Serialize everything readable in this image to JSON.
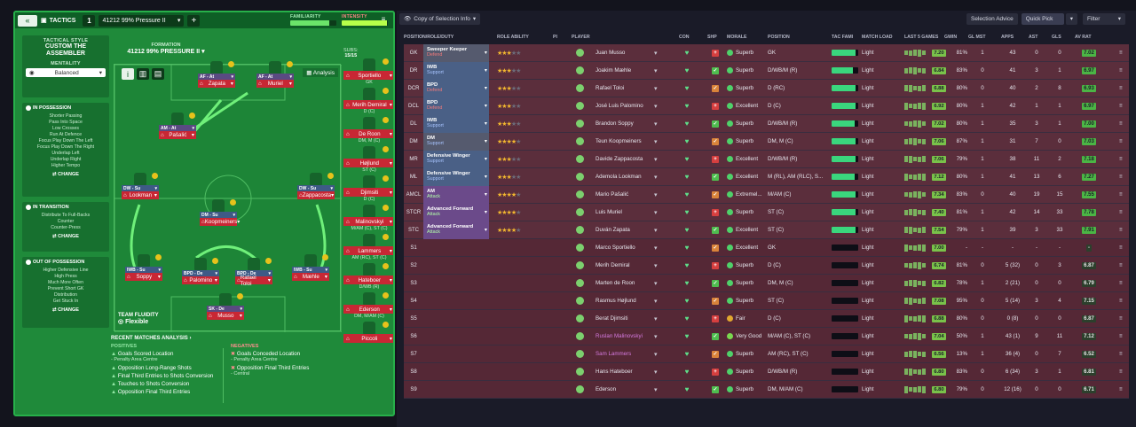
{
  "header": {
    "tactics_label": "TACTICS",
    "tactic_number": "1",
    "tactic_name": "41212 99% Pressure II",
    "familiarity_label": "FAMILIARITY",
    "familiarity": 0.85,
    "intensity_label": "INTENSITY",
    "intensity": 0.98
  },
  "style": {
    "label": "TACTICAL STYLE",
    "name": "CUSTOM THE ASSEMBLER",
    "mentality_label": "MENTALITY",
    "mentality_value": "Balanced"
  },
  "in_possession": {
    "title": "IN POSSESSION",
    "items": [
      "Shorter Passing",
      "Pass Into Space",
      "Low Crosses",
      "Run At Defence",
      "Focus Play Down The Left",
      "Focus Play Down The Right",
      "Underlap Left",
      "Underlap Right",
      "Higher Tempo"
    ],
    "change": "CHANGE"
  },
  "in_transition": {
    "title": "IN TRANSITION",
    "items": [
      "Distribute To Full-Backs",
      "Counter",
      "Counter-Press"
    ],
    "change": "CHANGE"
  },
  "out_possession": {
    "title": "OUT OF POSSESSION",
    "items": [
      "Higher Defensive Line",
      "High Press",
      "Much More Often",
      "Prevent Short GK",
      "Distribution",
      "Get Stuck In"
    ],
    "change": "CHANGE"
  },
  "formation": {
    "label": "FORMATION",
    "name": "41212 99% PRESSURE II",
    "subs_label": "SUBS:",
    "subs": "15/15",
    "analysis": "Analysis",
    "fluidity_label": "TEAM FLUIDITY",
    "fluidity": "Flexible"
  },
  "pitch_players": [
    {
      "role": "AF - At",
      "name": "Zapata"
    },
    {
      "role": "AF - At",
      "name": "Muriel"
    },
    {
      "role": "AM - At",
      "name": "Pašalić"
    },
    {
      "role": "DW - Su",
      "name": "Lookman"
    },
    {
      "role": "DW - Su",
      "name": "Zappacosta"
    },
    {
      "role": "DM - Su",
      "name": "Koopmeiners"
    },
    {
      "role": "IWB - Su",
      "name": "Soppy"
    },
    {
      "role": "BPD - De",
      "name": "Palomino"
    },
    {
      "role": "BPD - De",
      "name": "Rafael Toloi"
    },
    {
      "role": "IWB - Su",
      "name": "Mæhle"
    },
    {
      "role": "SK - De",
      "name": "Musso"
    }
  ],
  "bench": [
    {
      "name": "Sportiello",
      "pos": "GK"
    },
    {
      "name": "Merih Demiral",
      "pos": "D (C)"
    },
    {
      "name": "De Roon",
      "pos": "DM, M (C)"
    },
    {
      "name": "Højlund",
      "pos": "ST (C)"
    },
    {
      "name": "Djimsiti",
      "pos": "D (C)"
    },
    {
      "name": "Malinovskyi",
      "pos": "M/AM (C), ST (C)"
    },
    {
      "name": "Lammers",
      "pos": "AM (RC), ST (C)"
    },
    {
      "name": "Hateboer",
      "pos": "D/WB (R)"
    },
    {
      "name": "Ederson",
      "pos": "DM, M/AM (C)"
    },
    {
      "name": "Piccoli",
      "pos": ""
    }
  ],
  "recent": {
    "title": "RECENT MATCHES ANALYSIS ›",
    "positives_label": "POSITIVES",
    "negatives_label": "NEGATIVES",
    "positives": [
      [
        "Goals Scored Location",
        "- Penalty Area Centre"
      ],
      [
        "Opposition Long-Range Shots",
        ""
      ],
      [
        "Final Third Entries to Shots Conversion",
        ""
      ],
      [
        "Touches to Shots Conversion",
        ""
      ],
      [
        "Opposition Final Third Entries",
        ""
      ]
    ],
    "negatives": [
      [
        "Goals Conceded Location",
        "- Penalty Area Centre"
      ],
      [
        "Opposition Final Third Entries",
        "- Central"
      ]
    ]
  },
  "toolbar": {
    "view": "Copy of Selection Info",
    "selection_advice": "Selection Advice",
    "quick_pick": "Quick Pick",
    "filter": "Filter"
  },
  "columns": [
    "POSITION/ROLE/DUTY",
    "ROLE ABILITY",
    "PI",
    "PLAYER",
    "CON",
    "SHP",
    "MORALE",
    "POSITION",
    "TAC FAMI",
    "MATCH LOAD",
    "LAST 5 GAMES",
    "GWIN",
    "GL MST",
    "APPS",
    "AST",
    "GLS",
    "AV RAT"
  ],
  "rows": [
    {
      "pos": "GK",
      "role": "Sweeper Keeper",
      "duty": "Defend",
      "stars": 3,
      "player": "Juan Musso",
      "morale": "Superb",
      "position": "GK",
      "fam": 0.9,
      "load": "Light",
      "avr5": "7.20",
      "gwin": "81%",
      "glm": "1",
      "apps": "43",
      "ast": "0",
      "gls": "0",
      "avr": "7.02"
    },
    {
      "pos": "DR",
      "role": "IWB",
      "duty": "Support",
      "stars": 2.5,
      "player": "Joakim Mæhle",
      "morale": "Superb",
      "position": "D/WB/M (R)",
      "fam": 0.8,
      "load": "Light",
      "avr5": "6.84",
      "gwin": "83%",
      "glm": "0",
      "apps": "41",
      "ast": "3",
      "gls": "1",
      "avr": "6.97"
    },
    {
      "pos": "DCR",
      "role": "BPD",
      "duty": "Defend",
      "stars": 2.5,
      "player": "Rafael Toloi",
      "morale": "Superb",
      "position": "D (RC)",
      "fam": 0.9,
      "load": "Light",
      "avr5": "6.88",
      "gwin": "80%",
      "glm": "0",
      "apps": "40",
      "ast": "2",
      "gls": "8",
      "avr": "6.93"
    },
    {
      "pos": "DCL",
      "role": "BPD",
      "duty": "Defend",
      "stars": 2.5,
      "player": "José Luis Palomino",
      "morale": "Excellent",
      "position": "D (C)",
      "fam": 0.9,
      "load": "Light",
      "avr5": "6.92",
      "gwin": "80%",
      "glm": "1",
      "apps": "42",
      "ast": "1",
      "gls": "1",
      "avr": "6.97"
    },
    {
      "pos": "DL",
      "role": "IWB",
      "duty": "Support",
      "stars": 2.5,
      "player": "Brandon Soppy",
      "morale": "Superb",
      "position": "D/WB/M (R)",
      "fam": 0.85,
      "load": "Light",
      "avr5": "7.02",
      "gwin": "80%",
      "glm": "1",
      "apps": "35",
      "ast": "3",
      "gls": "1",
      "avr": "7.00"
    },
    {
      "pos": "DM",
      "role": "DM",
      "duty": "Support",
      "stars": 4,
      "player": "Teun Koopmeiners",
      "morale": "Superb",
      "position": "DM, M (C)",
      "fam": 0.9,
      "load": "Light",
      "avr5": "7.06",
      "gwin": "87%",
      "glm": "1",
      "apps": "31",
      "ast": "7",
      "gls": "0",
      "avr": "7.03"
    },
    {
      "pos": "MR",
      "role": "Defensive Winger",
      "duty": "Support",
      "stars": 3,
      "player": "Davide Zappacosta",
      "morale": "Excellent",
      "position": "D/WB/M (R)",
      "fam": 0.9,
      "load": "Light",
      "avr5": "7.06",
      "gwin": "79%",
      "glm": "1",
      "apps": "38",
      "ast": "11",
      "gls": "2",
      "avr": "7.18"
    },
    {
      "pos": "ML",
      "role": "Defensive Winger",
      "duty": "Support",
      "stars": 2.5,
      "player": "Ademola Lookman",
      "morale": "Excellent",
      "position": "M (RL), AM (RLC), S...",
      "fam": 0.85,
      "load": "Light",
      "avr5": "7.12",
      "gwin": "80%",
      "glm": "1",
      "apps": "41",
      "ast": "13",
      "gls": "6",
      "avr": "7.27"
    },
    {
      "pos": "AMCL",
      "role": "AM",
      "duty": "Attack",
      "stars": 4,
      "player": "Mario Pašalić",
      "morale": "Extremel...",
      "position": "M/AM (C)",
      "fam": 0.9,
      "load": "Light",
      "avr5": "7.34",
      "gwin": "83%",
      "glm": "0",
      "apps": "40",
      "ast": "19",
      "gls": "15",
      "avr": "7.55"
    },
    {
      "pos": "STCR",
      "role": "Advanced Forward",
      "duty": "Attack",
      "stars": 3.5,
      "player": "Luis Muriel",
      "morale": "Superb",
      "position": "ST (C)",
      "fam": 0.9,
      "load": "Light",
      "avr5": "7.40",
      "gwin": "81%",
      "glm": "1",
      "apps": "42",
      "ast": "14",
      "gls": "33",
      "avr": "7.78"
    },
    {
      "pos": "STC",
      "role": "Advanced Forward",
      "duty": "Attack",
      "stars": 3.5,
      "player": "Duván Zapata",
      "morale": "Excellent",
      "position": "ST (C)",
      "fam": 0.9,
      "load": "Light",
      "avr5": "7.54",
      "gwin": "79%",
      "glm": "1",
      "apps": "39",
      "ast": "3",
      "gls": "33",
      "avr": "7.91"
    },
    {
      "pos": "S1",
      "player": "Marco Sportiello",
      "morale": "Excellent",
      "position": "GK",
      "fam": 0,
      "load": "Light",
      "avr5": "7.00",
      "gwin": "-",
      "glm": "-",
      "apps": "-",
      "ast": "-",
      "gls": "-",
      "avr": "-"
    },
    {
      "pos": "S2",
      "player": "Merih Demiral",
      "morale": "Superb",
      "position": "D (C)",
      "fam": 0,
      "load": "Light",
      "avr5": "6.74",
      "gwin": "81%",
      "glm": "0",
      "apps": "5 (32)",
      "ast": "0",
      "gls": "3",
      "avr": "6.87"
    },
    {
      "pos": "S3",
      "player": "Marten de Roon",
      "morale": "Superb",
      "position": "DM, M (C)",
      "fam": 0,
      "load": "Light",
      "avr5": "6.82",
      "gwin": "78%",
      "glm": "1",
      "apps": "2 (21)",
      "ast": "0",
      "gls": "0",
      "avr": "6.79"
    },
    {
      "pos": "S4",
      "player": "Rasmus Højlund",
      "morale": "Superb",
      "position": "ST (C)",
      "fam": 0,
      "load": "Light",
      "avr5": "7.08",
      "gwin": "95%",
      "glm": "0",
      "apps": "5 (14)",
      "ast": "3",
      "gls": "4",
      "avr": "7.15"
    },
    {
      "pos": "S5",
      "player": "Berat Djimsiti",
      "morale": "Fair",
      "position": "D (C)",
      "fam": 0,
      "load": "Light",
      "avr5": "6.88",
      "gwin": "80%",
      "glm": "0",
      "apps": "0 (8)",
      "ast": "0",
      "gls": "0",
      "avr": "6.87"
    },
    {
      "pos": "S6",
      "player": "Ruslan Malinovskyi",
      "pink": true,
      "morale": "Very Good",
      "position": "M/AM (C), ST (C)",
      "fam": 0,
      "load": "Light",
      "avr5": "7.04",
      "gwin": "50%",
      "glm": "1",
      "apps": "43 (1)",
      "ast": "9",
      "gls": "11",
      "avr": "7.12"
    },
    {
      "pos": "S7",
      "player": "Sam Lammers",
      "pink": true,
      "morale": "Superb",
      "position": "AM (RC), ST (C)",
      "fam": 0,
      "load": "Light",
      "avr5": "6.56",
      "gwin": "13%",
      "glm": "1",
      "apps": "36 (4)",
      "ast": "0",
      "gls": "7",
      "avr": "6.52"
    },
    {
      "pos": "S8",
      "player": "Hans Hateboer",
      "morale": "Superb",
      "position": "D/WB/M (R)",
      "fam": 0,
      "load": "Light",
      "avr5": "6.80",
      "gwin": "83%",
      "glm": "0",
      "apps": "6 (34)",
      "ast": "3",
      "gls": "1",
      "avr": "6.81"
    },
    {
      "pos": "S9",
      "player": "Ederson",
      "morale": "Superb",
      "position": "DM, M/AM (C)",
      "fam": 0,
      "load": "Light",
      "avr5": "6.80",
      "gwin": "79%",
      "glm": "0",
      "apps": "12 (16)",
      "ast": "0",
      "gls": "0",
      "avr": "6.71"
    }
  ],
  "colors": {
    "accent": "#27b04a",
    "danger": "#c82734",
    "row": "#5a2a3a"
  }
}
